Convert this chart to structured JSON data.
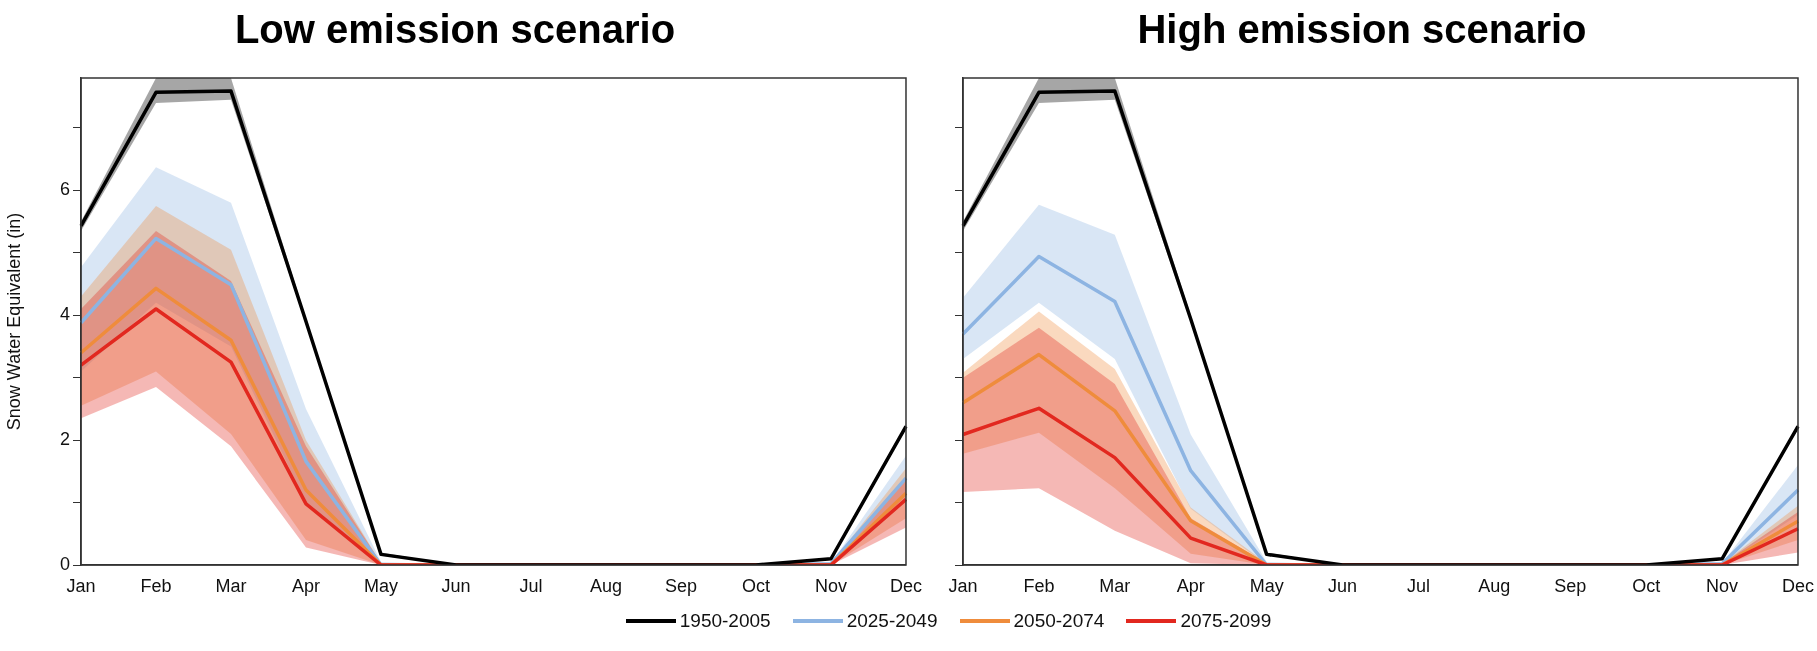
{
  "chart_data": [
    {
      "type": "line",
      "title": "Low emission scenario",
      "ylabel": "Snow Water Equivalent (in)",
      "categories": [
        "Jan",
        "Feb",
        "Mar",
        "Apr",
        "May",
        "Jun",
        "Jul",
        "Aug",
        "Sep",
        "Oct",
        "Nov",
        "Dec"
      ],
      "ylim": [
        0,
        7.8
      ],
      "yticks": [
        0,
        {
          "value": 1,
          "label": null
        },
        2,
        {
          "value": 3,
          "label": null
        },
        4,
        {
          "value": 5,
          "label": null
        },
        6,
        {
          "value": 7,
          "label": null
        }
      ],
      "grid": false,
      "legend": "bottom",
      "line_style": "solid",
      "marker": "none",
      "series": [
        {
          "name": "1950-2005",
          "color": "#000000",
          "values": [
            5.43,
            7.57,
            7.59,
            3.9,
            0.17,
            0,
            0,
            0,
            0,
            0,
            0.1,
            2.22
          ],
          "lower": [
            5.35,
            7.4,
            7.45,
            3.85,
            0.15,
            0,
            0,
            0,
            0,
            0,
            0.08,
            2.18
          ],
          "upper": [
            5.5,
            7.8,
            7.8,
            3.95,
            0.2,
            0,
            0,
            0,
            0,
            0,
            0.12,
            2.26
          ]
        },
        {
          "name": "2025-2049",
          "color": "#8db4e2",
          "values": [
            3.88,
            5.23,
            4.49,
            1.66,
            0,
            0,
            0,
            0,
            0,
            0,
            0.02,
            1.39
          ],
          "lower": [
            3.1,
            4.2,
            3.5,
            1.0,
            0,
            0,
            0,
            0,
            0,
            0,
            0,
            1.1
          ],
          "upper": [
            4.77,
            6.37,
            5.8,
            2.5,
            0.05,
            0,
            0,
            0,
            0,
            0,
            0.03,
            1.75
          ]
        },
        {
          "name": "2050-2074",
          "color": "#ef8c3c",
          "values": [
            3.4,
            4.43,
            3.6,
            1.2,
            0,
            0,
            0,
            0,
            0,
            0,
            0,
            1.15
          ],
          "lower": [
            2.55,
            3.1,
            2.1,
            0.4,
            0,
            0,
            0,
            0,
            0,
            0,
            0,
            0.75
          ],
          "upper": [
            4.3,
            5.75,
            5.05,
            2.0,
            0.03,
            0,
            0,
            0,
            0,
            0,
            0.02,
            1.55
          ]
        },
        {
          "name": "2075-2099",
          "color": "#e2281f",
          "values": [
            3.2,
            4.1,
            3.25,
            0.98,
            0,
            0,
            0,
            0,
            0,
            0,
            0,
            1.05
          ],
          "lower": [
            2.35,
            2.85,
            1.9,
            0.28,
            0,
            0,
            0,
            0,
            0,
            0,
            0,
            0.6
          ],
          "upper": [
            4.1,
            5.35,
            4.55,
            1.9,
            0.03,
            0,
            0,
            0,
            0,
            0,
            0.02,
            1.4
          ]
        }
      ]
    },
    {
      "type": "line",
      "title": "High emission scenario",
      "categories": [
        "Jan",
        "Feb",
        "Mar",
        "Apr",
        "May",
        "Jun",
        "Jul",
        "Aug",
        "Sep",
        "Oct",
        "Nov",
        "Dec"
      ],
      "ylim": [
        0,
        7.8
      ],
      "yticks": [
        {
          "value": 0,
          "label": null
        },
        {
          "value": 1,
          "label": null
        },
        {
          "value": 2,
          "label": null
        },
        {
          "value": 3,
          "label": null
        },
        {
          "value": 4,
          "label": null
        },
        {
          "value": 5,
          "label": null
        },
        {
          "value": 6,
          "label": null
        },
        {
          "value": 7,
          "label": null
        }
      ],
      "tick_labels": "x",
      "grid": false,
      "legend": "bottom",
      "line_style": "solid",
      "marker": "none",
      "series": [
        {
          "name": "1950-2005",
          "color": "#000000",
          "values": [
            5.43,
            7.57,
            7.59,
            3.94,
            0.17,
            0,
            0,
            0,
            0,
            0,
            0.1,
            2.22
          ],
          "lower": [
            5.35,
            7.4,
            7.45,
            3.88,
            0.15,
            0,
            0,
            0,
            0,
            0,
            0.08,
            2.18
          ],
          "upper": [
            5.5,
            7.8,
            7.8,
            4.0,
            0.2,
            0,
            0,
            0,
            0,
            0,
            0.12,
            2.26
          ]
        },
        {
          "name": "2025-2049",
          "color": "#8db4e2",
          "values": [
            3.7,
            4.94,
            4.22,
            1.51,
            0,
            0,
            0,
            0,
            0,
            0,
            0.02,
            1.2
          ],
          "lower": [
            3.3,
            4.2,
            3.3,
            0.9,
            0,
            0,
            0,
            0,
            0,
            0,
            0,
            0.8
          ],
          "upper": [
            4.28,
            5.77,
            5.29,
            2.09,
            0.05,
            0,
            0,
            0,
            0,
            0,
            0.03,
            1.6
          ]
        },
        {
          "name": "2050-2074",
          "color": "#ef8c3c",
          "values": [
            2.6,
            3.37,
            2.47,
            0.71,
            0,
            0,
            0,
            0,
            0,
            0,
            0,
            0.7
          ],
          "lower": [
            1.78,
            2.12,
            1.23,
            0.18,
            0,
            0,
            0,
            0,
            0,
            0,
            0,
            0.4
          ],
          "upper": [
            3.08,
            4.06,
            3.14,
            0.92,
            0.03,
            0,
            0,
            0,
            0,
            0,
            0.02,
            0.95
          ]
        },
        {
          "name": "2075-2099",
          "color": "#e2281f",
          "values": [
            2.09,
            2.51,
            1.72,
            0.43,
            0,
            0,
            0,
            0,
            0,
            0,
            0,
            0.58
          ],
          "lower": [
            1.17,
            1.23,
            0.55,
            0.03,
            0,
            0,
            0,
            0,
            0,
            0,
            0,
            0.2
          ],
          "upper": [
            3.0,
            3.8,
            2.9,
            0.75,
            0.03,
            0,
            0,
            0,
            0,
            0,
            0.02,
            0.85
          ]
        }
      ]
    }
  ]
}
